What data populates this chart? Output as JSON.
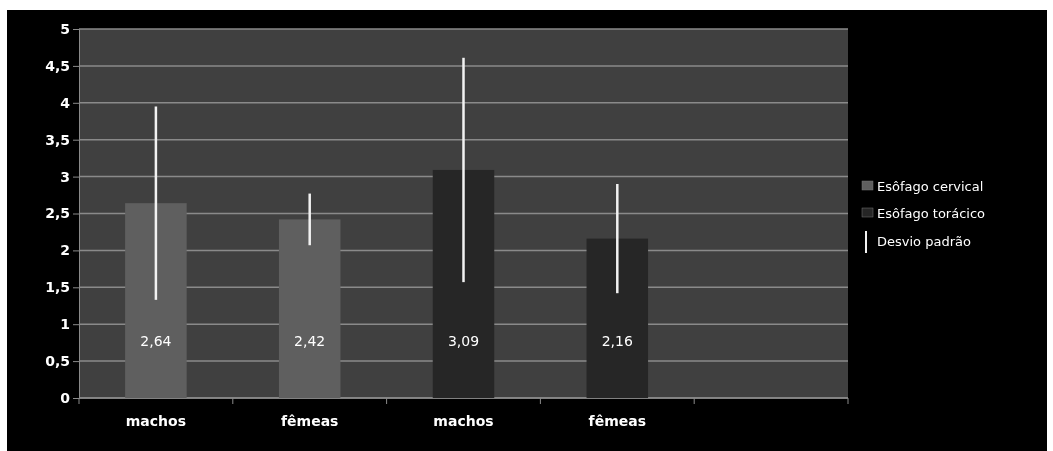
{
  "chart_data": {
    "type": "bar",
    "categories": [
      "machos",
      "fêmeas",
      "machos",
      "fêmeas",
      null
    ],
    "series": [
      {
        "name": "Esôfago cervical",
        "color": "#5f5f5f",
        "values": [
          2.64,
          2.42,
          null,
          null,
          null
        ],
        "errors": [
          1.31,
          0.35,
          null,
          null,
          null
        ],
        "value_labels": [
          "2,64",
          "2,42",
          null,
          null,
          null
        ]
      },
      {
        "name": "Esôfago torácico",
        "color": "#262626",
        "values": [
          null,
          null,
          3.09,
          2.16,
          null
        ],
        "errors": [
          null,
          null,
          1.52,
          0.74,
          null
        ],
        "value_labels": [
          null,
          null,
          "3,09",
          "2,16",
          null
        ]
      }
    ],
    "ylim": [
      0,
      5
    ],
    "yticks": [
      0,
      {
        "value": 0.5,
        "label": "0,5"
      },
      1,
      {
        "value": 1.5,
        "label": "1,5"
      },
      2,
      {
        "value": 2.5,
        "label": "2,5"
      },
      3,
      {
        "value": 3.5,
        "label": "3,5"
      },
      4,
      {
        "value": 4.5,
        "label": "4,5"
      },
      5
    ],
    "grid": "y",
    "legend": "right",
    "annotations": [
      "Desvio padrão"
    ]
  }
}
